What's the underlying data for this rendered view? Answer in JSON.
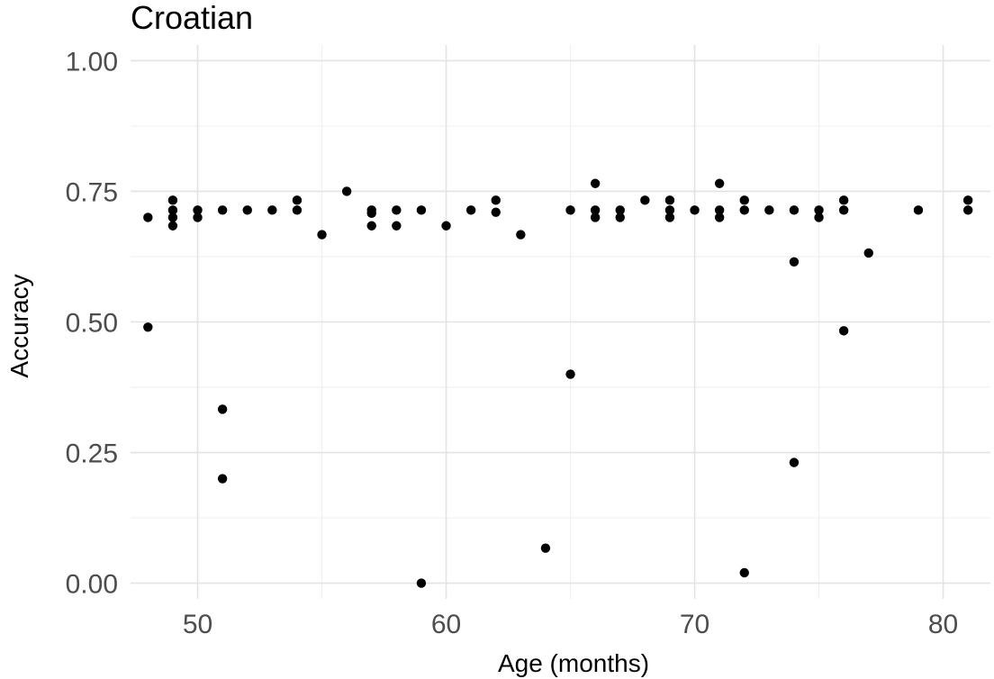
{
  "chart_data": {
    "type": "scatter",
    "title": "Croatian",
    "xlabel": "Age (months)",
    "ylabel": "Accuracy",
    "xlim": [
      47.3,
      81.9
    ],
    "ylim": [
      -0.03,
      1.03
    ],
    "xticks": [
      50,
      60,
      70,
      80
    ],
    "xtick_labels": [
      "50",
      "60",
      "70",
      "80"
    ],
    "yticks": [
      0,
      0.25,
      0.5,
      0.75,
      1.0
    ],
    "ytick_labels": [
      "0.00",
      "0.25",
      "0.50",
      "0.75",
      "1.00"
    ],
    "grid": true,
    "point_color": "#000000",
    "grid_color": "#e3e3e3",
    "points": [
      {
        "x": 48,
        "y": 0.7
      },
      {
        "x": 48,
        "y": 0.49
      },
      {
        "x": 49,
        "y": 0.733
      },
      {
        "x": 49,
        "y": 0.714
      },
      {
        "x": 49,
        "y": 0.7
      },
      {
        "x": 49,
        "y": 0.684
      },
      {
        "x": 50,
        "y": 0.714
      },
      {
        "x": 50,
        "y": 0.7
      },
      {
        "x": 51,
        "y": 0.714
      },
      {
        "x": 51,
        "y": 0.333
      },
      {
        "x": 51,
        "y": 0.2
      },
      {
        "x": 52,
        "y": 0.714
      },
      {
        "x": 53,
        "y": 0.714
      },
      {
        "x": 54,
        "y": 0.733
      },
      {
        "x": 54,
        "y": 0.714
      },
      {
        "x": 55,
        "y": 0.667
      },
      {
        "x": 56,
        "y": 0.75
      },
      {
        "x": 57,
        "y": 0.714
      },
      {
        "x": 57,
        "y": 0.708
      },
      {
        "x": 57,
        "y": 0.684
      },
      {
        "x": 58,
        "y": 0.714
      },
      {
        "x": 58,
        "y": 0.684
      },
      {
        "x": 59,
        "y": 0.714
      },
      {
        "x": 59,
        "y": 0.0
      },
      {
        "x": 60,
        "y": 0.684
      },
      {
        "x": 61,
        "y": 0.714
      },
      {
        "x": 62,
        "y": 0.733
      },
      {
        "x": 62,
        "y": 0.71
      },
      {
        "x": 63,
        "y": 0.667
      },
      {
        "x": 64,
        "y": 0.067
      },
      {
        "x": 65,
        "y": 0.714
      },
      {
        "x": 65,
        "y": 0.4
      },
      {
        "x": 66,
        "y": 0.765
      },
      {
        "x": 66,
        "y": 0.714
      },
      {
        "x": 66,
        "y": 0.7
      },
      {
        "x": 67,
        "y": 0.714
      },
      {
        "x": 67,
        "y": 0.7
      },
      {
        "x": 68,
        "y": 0.733
      },
      {
        "x": 69,
        "y": 0.733
      },
      {
        "x": 69,
        "y": 0.714
      },
      {
        "x": 69,
        "y": 0.7
      },
      {
        "x": 70,
        "y": 0.714
      },
      {
        "x": 71,
        "y": 0.765
      },
      {
        "x": 71,
        "y": 0.714
      },
      {
        "x": 71,
        "y": 0.7
      },
      {
        "x": 72,
        "y": 0.733
      },
      {
        "x": 72,
        "y": 0.714
      },
      {
        "x": 72,
        "y": 0.02
      },
      {
        "x": 73,
        "y": 0.714
      },
      {
        "x": 74,
        "y": 0.714
      },
      {
        "x": 74,
        "y": 0.615
      },
      {
        "x": 74,
        "y": 0.231
      },
      {
        "x": 75,
        "y": 0.714
      },
      {
        "x": 75,
        "y": 0.7
      },
      {
        "x": 76,
        "y": 0.733
      },
      {
        "x": 76,
        "y": 0.714
      },
      {
        "x": 76,
        "y": 0.483
      },
      {
        "x": 77,
        "y": 0.632
      },
      {
        "x": 79,
        "y": 0.714
      },
      {
        "x": 81,
        "y": 0.733
      },
      {
        "x": 81,
        "y": 0.714
      }
    ]
  }
}
